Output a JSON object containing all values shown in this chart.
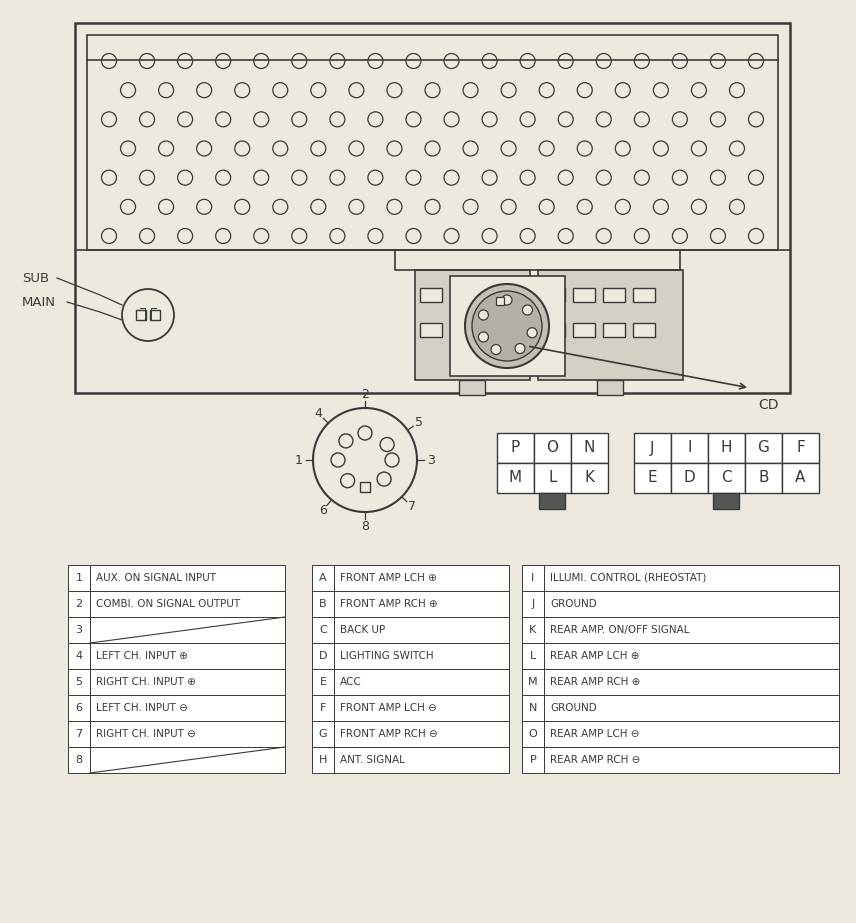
{
  "bg_color": "#ede9de",
  "line_color": "#3a3a3a",
  "left_table": {
    "rows": [
      [
        "1",
        "AUX. ON SIGNAL INPUT"
      ],
      [
        "2",
        "COMBI. ON SIGNAL OUTPUT"
      ],
      [
        "3",
        ""
      ],
      [
        "4",
        "LEFT CH. INPUT ⊕"
      ],
      [
        "5",
        "RIGHT CH. INPUT ⊕"
      ],
      [
        "6",
        "LEFT CH. INPUT ⊖"
      ],
      [
        "7",
        "RIGHT CH. INPUT ⊖"
      ],
      [
        "8",
        ""
      ]
    ]
  },
  "mid_table": {
    "rows": [
      [
        "A",
        "FRONT AMP LCH ⊕"
      ],
      [
        "B",
        "FRONT AMP RCH ⊕"
      ],
      [
        "C",
        "BACK UP"
      ],
      [
        "D",
        "LIGHTING SWITCH"
      ],
      [
        "E",
        "ACC"
      ],
      [
        "F",
        "FRONT AMP LCH ⊖"
      ],
      [
        "G",
        "FRONT AMP RCH ⊖"
      ],
      [
        "H",
        "ANT. SIGNAL"
      ]
    ]
  },
  "right_table": {
    "rows": [
      [
        "I",
        "ILLUMI. CONTROL (RHEOSTAT)"
      ],
      [
        "J",
        "GROUND"
      ],
      [
        "K",
        "REAR AMP. ON/OFF SIGNAL"
      ],
      [
        "L",
        "REAR AMP LCH ⊕"
      ],
      [
        "M",
        "REAR AMP RCH ⊕"
      ],
      [
        "N",
        "GROUND"
      ],
      [
        "O",
        "REAR AMP LCH ⊖"
      ],
      [
        "P",
        "REAR AMP RCH ⊖"
      ]
    ]
  },
  "connector_A_labels": [
    [
      "P",
      "O",
      "N"
    ],
    [
      "M",
      "L",
      "K"
    ]
  ],
  "connector_B_labels": [
    [
      "J",
      "I",
      "H",
      "G",
      "F"
    ],
    [
      "E",
      "D",
      "C",
      "B",
      "A"
    ]
  ]
}
